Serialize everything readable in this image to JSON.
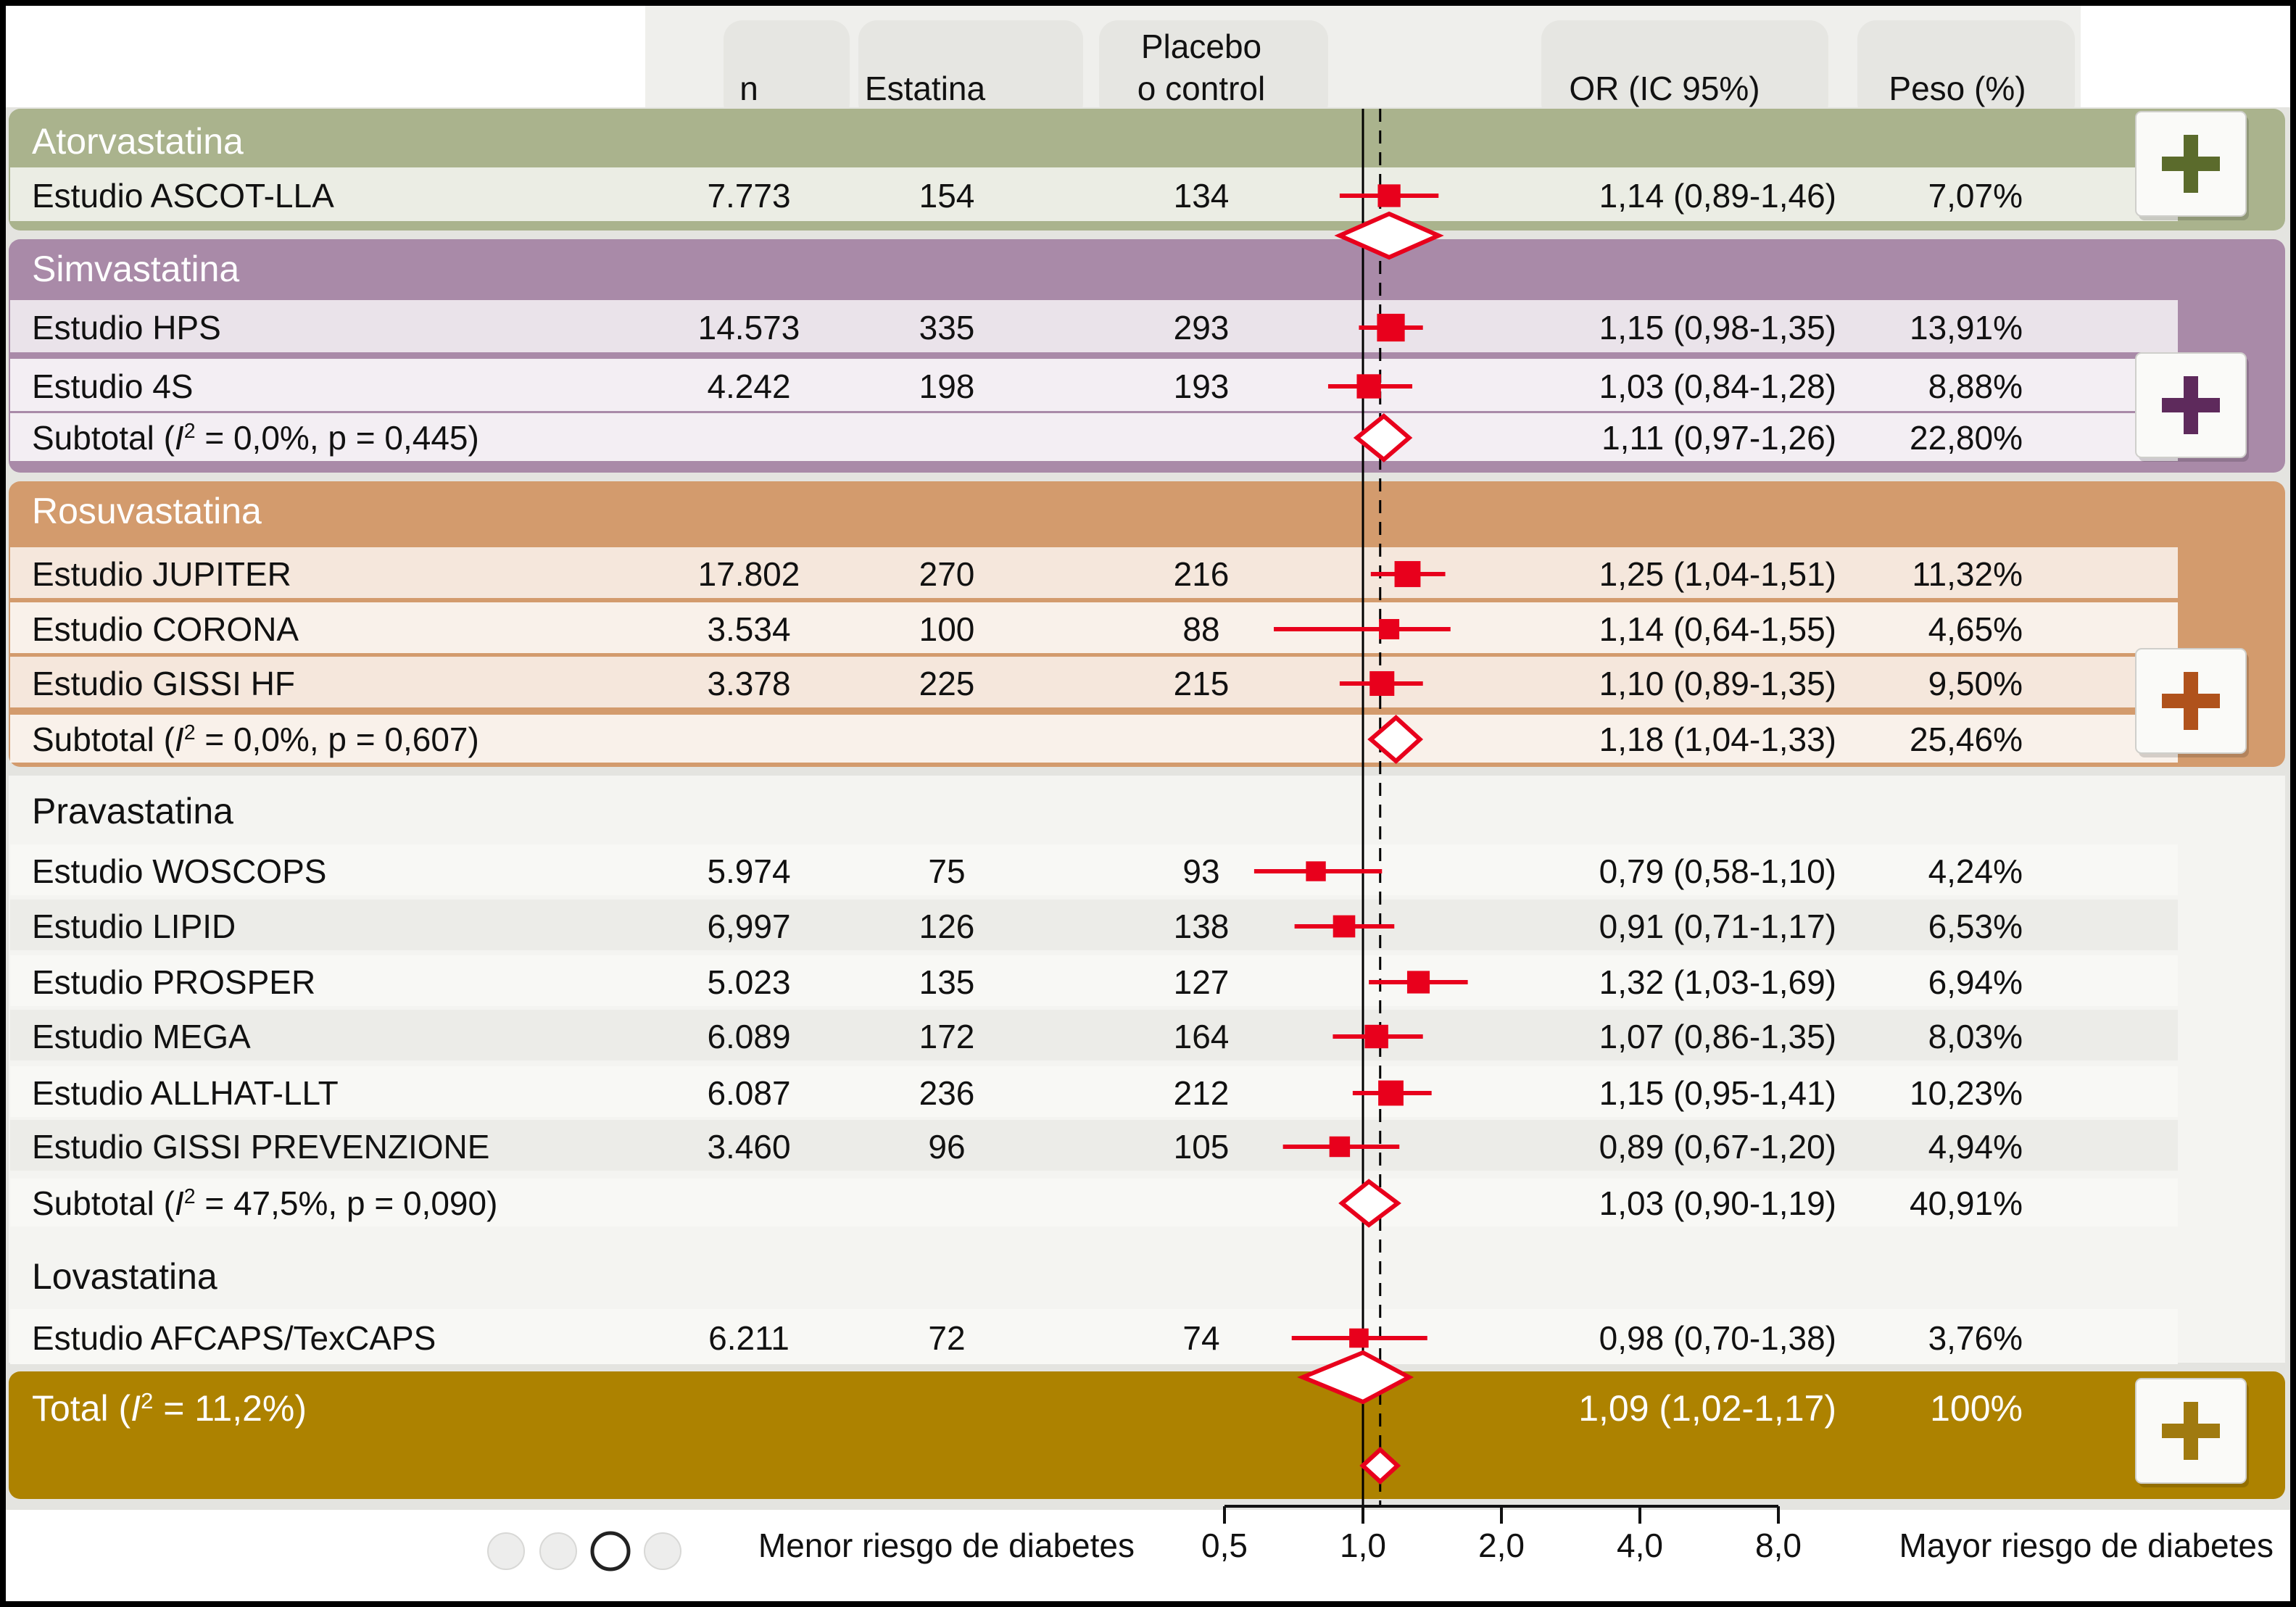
{
  "header": {
    "n": "n",
    "statin": "Estatina",
    "placebo_line1": "Placebo",
    "placebo_line2": "o control",
    "or": "OR (IC 95%)",
    "weight": "Peso (%)"
  },
  "groups": [
    {
      "name": "Atorvastatina",
      "color": "#aab38d",
      "plus_color": "#5b6b2c",
      "rows": [
        {
          "label": "Estudio ASCOT-LLA",
          "n": "7.773",
          "statin": "154",
          "placebo": "134",
          "or": 1.14,
          "lo": 0.89,
          "hi": 1.46,
          "or_text": "1,14 (0,89-1,46)",
          "weight": "7,07%"
        }
      ]
    },
    {
      "name": "Simvastatina",
      "color": "#a98aa8",
      "plus_color": "#5e2a5c",
      "rows": [
        {
          "label": "Estudio HPS",
          "n": "14.573",
          "statin": "335",
          "placebo": "293",
          "or": 1.15,
          "lo": 0.98,
          "hi": 1.35,
          "or_text": "1,15 (0,98-1,35)",
          "weight": "13,91%"
        },
        {
          "label": "Estudio 4S",
          "n": "4.242",
          "statin": "198",
          "placebo": "193",
          "or": 1.03,
          "lo": 0.84,
          "hi": 1.28,
          "or_text": "1,03 (0,84-1,28)",
          "weight": "8,88%"
        }
      ],
      "subtotal": {
        "label_pre": "Subtotal (",
        "i2_symbol": "I",
        "i2_sup": "2",
        "label_post": " = 0,0%, p = 0,445)",
        "or": 1.11,
        "lo": 0.97,
        "hi": 1.26,
        "or_text": "1,11 (0,97-1,26)",
        "weight": "22,80%"
      }
    },
    {
      "name": "Rosuvastatina",
      "color": "#d39b6d",
      "plus_color": "#b0521c",
      "rows": [
        {
          "label": "Estudio JUPITER",
          "n": "17.802",
          "statin": "270",
          "placebo": "216",
          "or": 1.25,
          "lo": 1.04,
          "hi": 1.51,
          "or_text": "1,25 (1,04-1,51)",
          "weight": "11,32%"
        },
        {
          "label": "Estudio CORONA",
          "n": "3.534",
          "statin": "100",
          "placebo": "88",
          "or": 1.14,
          "lo": 0.64,
          "hi": 1.55,
          "or_text": "1,14 (0,64-1,55)",
          "weight": "4,65%"
        },
        {
          "label": "Estudio GISSI HF",
          "n": "3.378",
          "statin": "225",
          "placebo": "215",
          "or": 1.1,
          "lo": 0.89,
          "hi": 1.35,
          "or_text": "1,10 (0,89-1,35)",
          "weight": "9,50%"
        }
      ],
      "subtotal": {
        "label_pre": "Subtotal (",
        "i2_symbol": "I",
        "i2_sup": "2",
        "label_post": " = 0,0%, p = 0,607)",
        "or": 1.18,
        "lo": 1.04,
        "hi": 1.33,
        "or_text": "1,18 (1,04-1,33)",
        "weight": "25,46%"
      }
    },
    {
      "name": "Pravastatina",
      "color": "#eeeeea",
      "rows": [
        {
          "label": "Estudio WOSCOPS",
          "n": "5.974",
          "statin": "75",
          "placebo": "93",
          "or": 0.79,
          "lo": 0.58,
          "hi": 1.1,
          "or_text": "0,79 (0,58-1,10)",
          "weight": "4,24%"
        },
        {
          "label": "Estudio LIPID",
          "n": "6,997",
          "statin": "126",
          "placebo": "138",
          "or": 0.91,
          "lo": 0.71,
          "hi": 1.17,
          "or_text": "0,91 (0,71-1,17)",
          "weight": "6,53%"
        },
        {
          "label": "Estudio PROSPER",
          "n": "5.023",
          "statin": "135",
          "placebo": "127",
          "or": 1.32,
          "lo": 1.03,
          "hi": 1.69,
          "or_text": "1,32 (1,03-1,69)",
          "weight": "6,94%"
        },
        {
          "label": "Estudio MEGA",
          "n": "6.089",
          "statin": "172",
          "placebo": "164",
          "or": 1.07,
          "lo": 0.86,
          "hi": 1.35,
          "or_text": "1,07 (0,86-1,35)",
          "weight": "8,03%"
        },
        {
          "label": "Estudio ALLHAT-LLT",
          "n": "6.087",
          "statin": "236",
          "placebo": "212",
          "or": 1.15,
          "lo": 0.95,
          "hi": 1.41,
          "or_text": "1,15 (0,95-1,41)",
          "weight": "10,23%"
        },
        {
          "label": "Estudio GISSI PREVENZIONE",
          "n": "3.460",
          "statin": "96",
          "placebo": "105",
          "or": 0.89,
          "lo": 0.67,
          "hi": 1.2,
          "or_text": "0,89 (0,67-1,20)",
          "weight": "4,94%"
        }
      ],
      "subtotal": {
        "label_pre": "Subtotal (",
        "i2_symbol": "I",
        "i2_sup": "2",
        "label_post": " = 47,5%, p = 0,090)",
        "or": 1.03,
        "lo": 0.9,
        "hi": 1.19,
        "or_text": "1,03 (0,90-1,19)",
        "weight": "40,91%"
      }
    },
    {
      "name": "Lovastatina",
      "color": "#eeeeea",
      "rows": [
        {
          "label": "Estudio AFCAPS/TexCAPS",
          "n": "6.211",
          "statin": "72",
          "placebo": "74",
          "or": 0.98,
          "lo": 0.7,
          "hi": 1.38,
          "or_text": "0,98 (0,70-1,38)",
          "weight": "3,76%"
        }
      ]
    }
  ],
  "total": {
    "label_pre": "Total (",
    "i2_symbol": "I",
    "i2_sup": "2",
    "label_post": " = 11,2%)",
    "or": 1.09,
    "lo": 1.02,
    "hi": 1.17,
    "or_text": "1,09 (1,02-1,17)",
    "weight": "100%",
    "color": "#ad8200",
    "plus_color": "#a07a10"
  },
  "axis": {
    "ticks": [
      0.5,
      1.0,
      2.0,
      4.0,
      8.0
    ],
    "tick_labels": [
      "0,5",
      "1,0",
      "2,0",
      "4,0",
      "8,0"
    ],
    "scale": "log",
    "left_label": "Menor riesgo de diabetes",
    "right_label": "Mayor riesgo de diabetes"
  },
  "pagination": {
    "total": 4,
    "active": 3
  },
  "colors": {
    "marker": "#e8001c",
    "reference_line": "#000000",
    "background": "#e6e6e3"
  },
  "chart_data": {
    "type": "forest",
    "measure": "OR (IC 95%)",
    "scale": "log",
    "x_ticks": [
      0.5,
      1.0,
      2.0,
      4.0,
      8.0
    ],
    "null_value": 1.0,
    "pooled_line": 1.09,
    "xlabel_left": "Menor riesgo de diabetes",
    "xlabel_right": "Mayor riesgo de diabetes",
    "studies": [
      {
        "group": "Atorvastatina",
        "study": "Estudio ASCOT-LLA",
        "or": 1.14,
        "lo": 0.89,
        "hi": 1.46,
        "weight": 7.07
      },
      {
        "group": "Simvastatina",
        "study": "Estudio HPS",
        "or": 1.15,
        "lo": 0.98,
        "hi": 1.35,
        "weight": 13.91
      },
      {
        "group": "Simvastatina",
        "study": "Estudio 4S",
        "or": 1.03,
        "lo": 0.84,
        "hi": 1.28,
        "weight": 8.88
      },
      {
        "group": "Rosuvastatina",
        "study": "Estudio JUPITER",
        "or": 1.25,
        "lo": 1.04,
        "hi": 1.51,
        "weight": 11.32
      },
      {
        "group": "Rosuvastatina",
        "study": "Estudio CORONA",
        "or": 1.14,
        "lo": 0.64,
        "hi": 1.55,
        "weight": 4.65
      },
      {
        "group": "Rosuvastatina",
        "study": "Estudio GISSI HF",
        "or": 1.1,
        "lo": 0.89,
        "hi": 1.35,
        "weight": 9.5
      },
      {
        "group": "Pravastatina",
        "study": "Estudio WOSCOPS",
        "or": 0.79,
        "lo": 0.58,
        "hi": 1.1,
        "weight": 4.24
      },
      {
        "group": "Pravastatina",
        "study": "Estudio LIPID",
        "or": 0.91,
        "lo": 0.71,
        "hi": 1.17,
        "weight": 6.53
      },
      {
        "group": "Pravastatina",
        "study": "Estudio PROSPER",
        "or": 1.32,
        "lo": 1.03,
        "hi": 1.69,
        "weight": 6.94
      },
      {
        "group": "Pravastatina",
        "study": "Estudio MEGA",
        "or": 1.07,
        "lo": 0.86,
        "hi": 1.35,
        "weight": 8.03
      },
      {
        "group": "Pravastatina",
        "study": "Estudio ALLHAT-LLT",
        "or": 1.15,
        "lo": 0.95,
        "hi": 1.41,
        "weight": 10.23
      },
      {
        "group": "Pravastatina",
        "study": "Estudio GISSI PREVENZIONE",
        "or": 0.89,
        "lo": 0.67,
        "hi": 1.2,
        "weight": 4.94
      },
      {
        "group": "Lovastatina",
        "study": "Estudio AFCAPS/TexCAPS",
        "or": 0.98,
        "lo": 0.7,
        "hi": 1.38,
        "weight": 3.76
      }
    ],
    "subtotals": [
      {
        "group": "Atorvastatina",
        "or": 1.14,
        "lo": 0.89,
        "hi": 1.46
      },
      {
        "group": "Simvastatina",
        "or": 1.11,
        "lo": 0.97,
        "hi": 1.26,
        "weight": 22.8,
        "i2": 0.0,
        "p": 0.445
      },
      {
        "group": "Rosuvastatina",
        "or": 1.18,
        "lo": 1.04,
        "hi": 1.33,
        "weight": 25.46,
        "i2": 0.0,
        "p": 0.607
      },
      {
        "group": "Pravastatina",
        "or": 1.03,
        "lo": 0.9,
        "hi": 1.19,
        "weight": 40.91,
        "i2": 47.5,
        "p": 0.09
      }
    ],
    "total": {
      "or": 1.09,
      "lo": 1.02,
      "hi": 1.17,
      "weight": 100,
      "i2": 11.2
    }
  }
}
